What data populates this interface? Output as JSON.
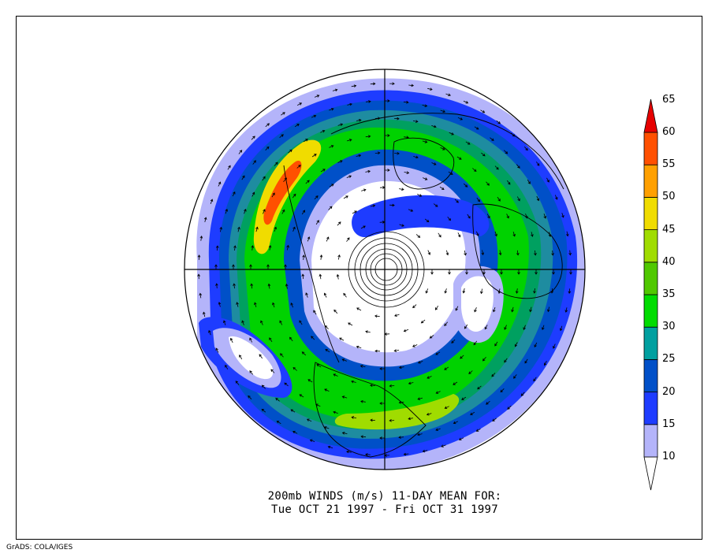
{
  "title_line1": "200mb WINDS (m/s)   11-DAY MEAN FOR:",
  "title_line2": "Tue OCT 21 1997 - Fri OCT 31 1997",
  "credit": "GrADS: COLA/IGES",
  "colorbar": {
    "levels": [
      "10",
      "15",
      "20",
      "25",
      "30",
      "35",
      "40",
      "45",
      "50",
      "55",
      "60",
      "65"
    ],
    "colors": [
      "#b4b4fa",
      "#1e3cff",
      "#0050c8",
      "#00a0a0",
      "#00dc00",
      "#50c800",
      "#a0dc00",
      "#f0dc00",
      "#ffa000",
      "#ff5000",
      "#e60000"
    ]
  },
  "map_colors": {
    "c10": "#b4b4fa",
    "c15": "#1e3cff",
    "c20": "#0050c8",
    "c25": "#1e8ca0",
    "c30": "#00a060",
    "c35": "#00d200",
    "c40": "#50c800",
    "c45": "#a0dc00",
    "c50": "#f0dc00",
    "c55": "#ffa000",
    "c60": "#ff5000",
    "c65": "#e60000"
  }
}
